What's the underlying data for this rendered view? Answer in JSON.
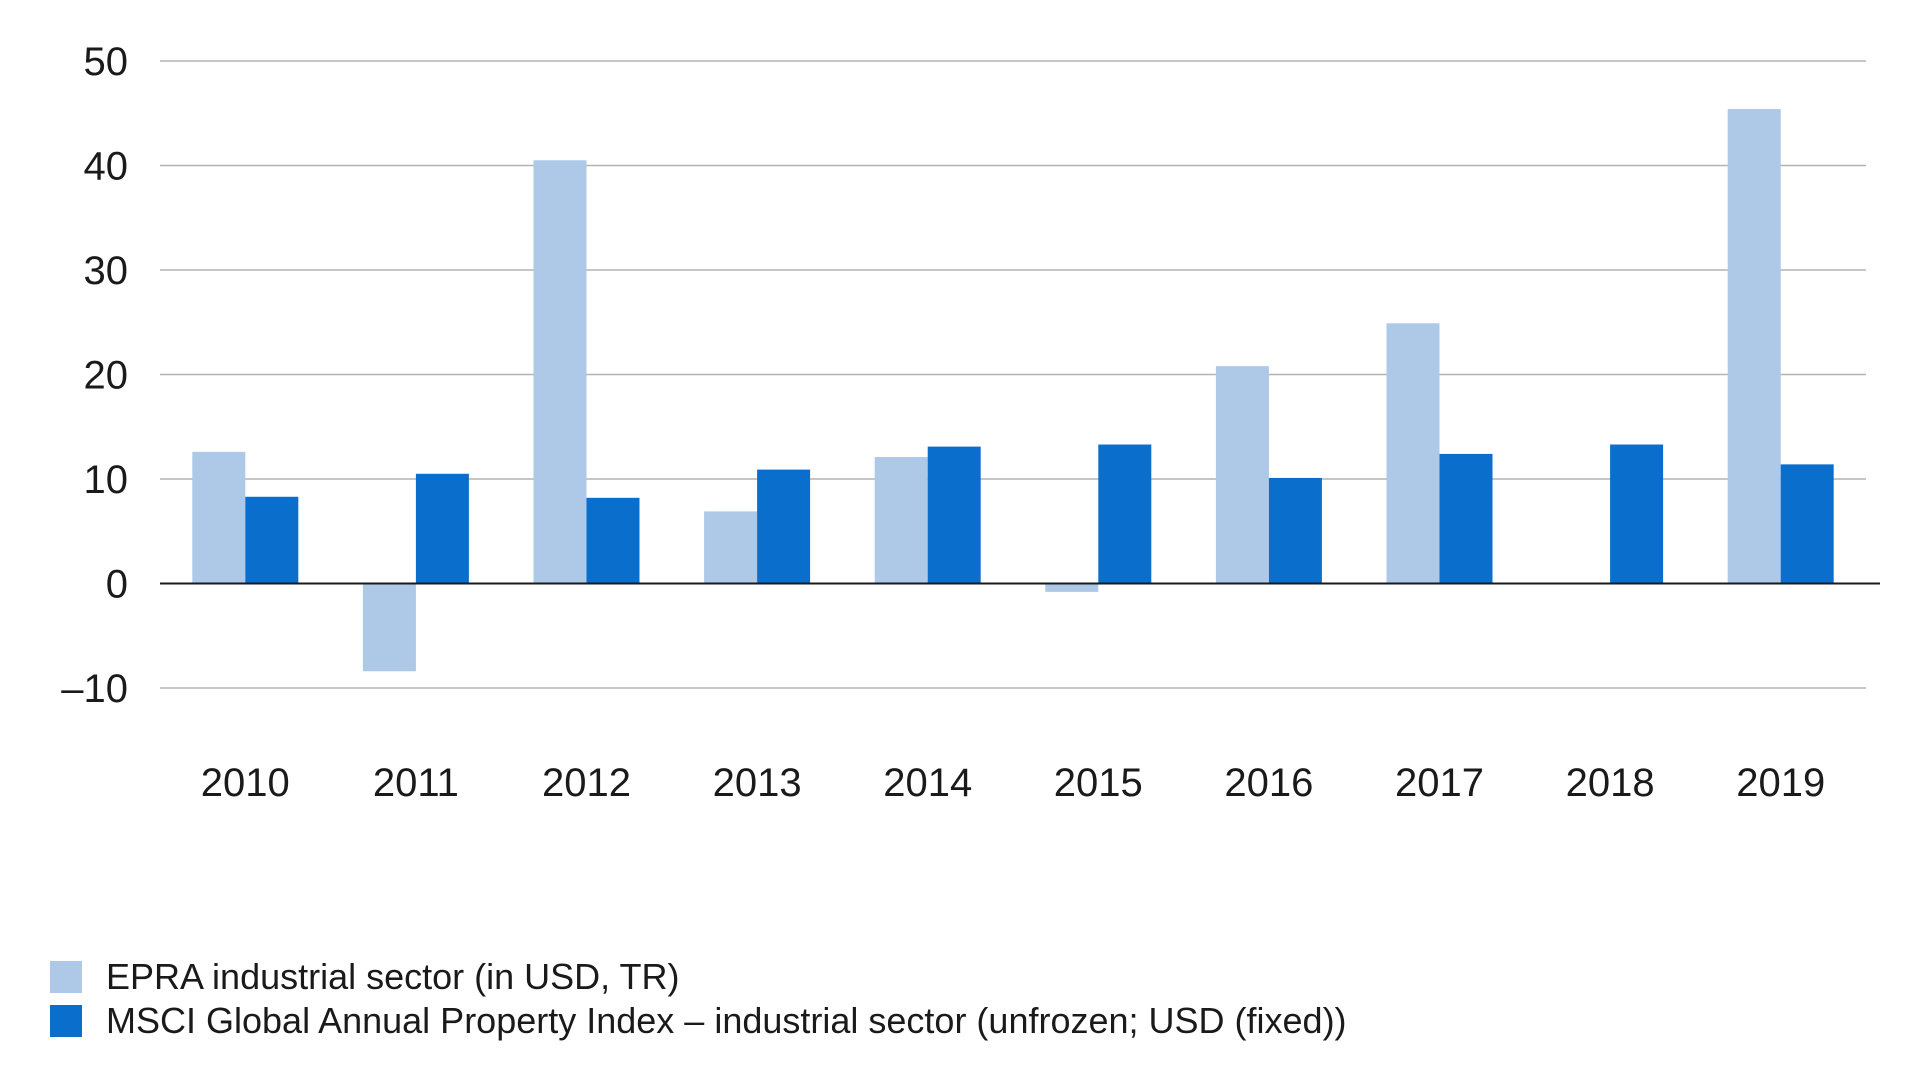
{
  "chart_data": {
    "type": "bar",
    "categories": [
      "2010",
      "2011",
      "2012",
      "2013",
      "2014",
      "2015",
      "2016",
      "2017",
      "2018",
      "2019"
    ],
    "series": [
      {
        "name": "EPRA industrial sector (in USD, TR)",
        "color": "#aec8e8",
        "values": [
          12.6,
          -8.4,
          40.5,
          6.9,
          12.1,
          -0.8,
          20.8,
          24.9,
          -0.1,
          45.4
        ]
      },
      {
        "name": "MSCI Global Annual Property Index – industrial sector (unfrozen; USD (fixed))",
        "color": "#0a6fcc",
        "values": [
          8.3,
          10.5,
          8.2,
          10.9,
          13.1,
          13.3,
          10.1,
          12.4,
          13.3,
          11.4
        ]
      }
    ],
    "yticks": [
      "50",
      "40",
      "30",
      "20",
      "10",
      "0",
      "–10"
    ],
    "ytick_values": [
      50,
      40,
      30,
      20,
      10,
      0,
      -10
    ],
    "ylim": [
      -10,
      50
    ],
    "title": "",
    "xlabel": "",
    "ylabel": "",
    "grid": true,
    "legend_position": "bottom-left"
  }
}
